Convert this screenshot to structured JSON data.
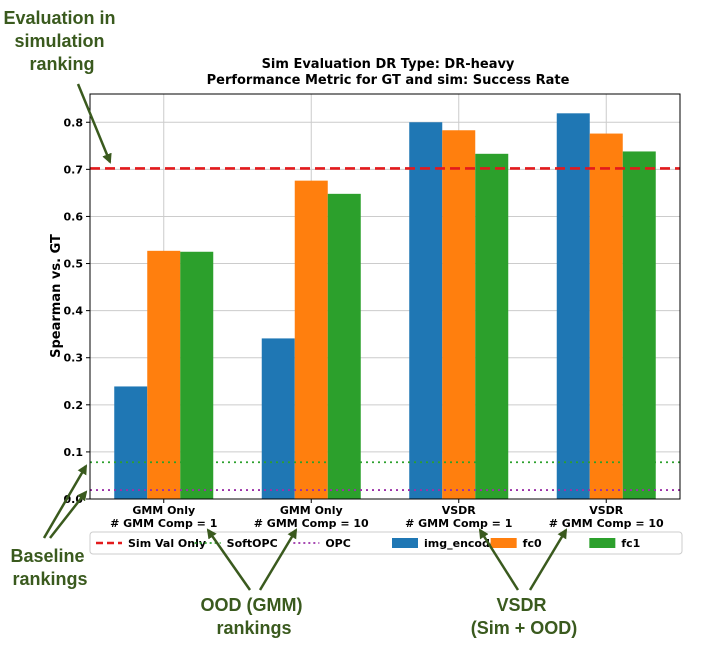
{
  "chart_data": {
    "type": "bar",
    "title": "Sim Evaluation DR Type: DR-heavy",
    "subtitle": "Performance Metric for GT and sim: Success Rate",
    "ylabel": "Spearman vs. GT",
    "xlabel": "",
    "ylim": [
      0.0,
      0.86
    ],
    "yticks": [
      0.0,
      0.1,
      0.2,
      0.3,
      0.4,
      0.5,
      0.6,
      0.7,
      0.8
    ],
    "grid": true,
    "legend_position": "bottom",
    "categories": [
      [
        "GMM Only",
        "# GMM Comp = 1"
      ],
      [
        "GMM Only",
        "# GMM Comp = 10"
      ],
      [
        "VSDR",
        "# GMM Comp = 1"
      ],
      [
        "VSDR",
        "# GMM Comp = 10"
      ]
    ],
    "series": [
      {
        "name": "img_encoder",
        "color": "#1f77b4",
        "values": [
          0.239,
          0.341,
          0.8,
          0.819
        ]
      },
      {
        "name": "fc0",
        "color": "#ff7f0e",
        "values": [
          0.527,
          0.676,
          0.783,
          0.776
        ]
      },
      {
        "name": "fc1",
        "color": "#2ca02c",
        "values": [
          0.525,
          0.648,
          0.733,
          0.738
        ]
      }
    ],
    "reference_lines": [
      {
        "name": "Sim Val Only",
        "value": 0.702,
        "color": "#e31a1c",
        "style": "dashed"
      },
      {
        "name": "SoftOPC",
        "value": 0.078,
        "color": "#2ca02c",
        "style": "dotted"
      },
      {
        "name": "OPC",
        "value": 0.019,
        "color": "#9b30a8",
        "style": "dotted"
      }
    ]
  },
  "annotations": [
    {
      "id": "eval-sim",
      "lines": [
        "Evaluation in",
        "simulation",
        "ranking"
      ]
    },
    {
      "id": "baseline",
      "lines": [
        "Baseline",
        "rankings"
      ]
    },
    {
      "id": "ood",
      "lines": [
        "OOD (GMM)",
        "rankings"
      ]
    },
    {
      "id": "vsdr",
      "lines": [
        "VSDR",
        "(Sim + OOD)"
      ]
    }
  ],
  "colors": {
    "annotation": "#3a5a1e",
    "grid": "#cccccc"
  }
}
